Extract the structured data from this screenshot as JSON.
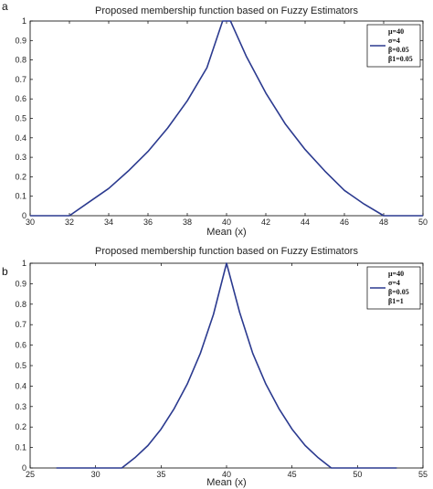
{
  "chart_data": [
    {
      "panel_label": "a",
      "type": "line",
      "title": "Proposed membership function based on Fuzzy Estimators",
      "xlabel": "Mean (x)",
      "ylabel": "",
      "xlim": [
        30,
        50
      ],
      "ylim": [
        0,
        1
      ],
      "x_ticks": [
        30,
        32,
        34,
        36,
        38,
        40,
        42,
        44,
        46,
        48,
        50
      ],
      "y_ticks": [
        0,
        0.1,
        0.2,
        0.3,
        0.4,
        0.5,
        0.6,
        0.7,
        0.8,
        0.9,
        1
      ],
      "grid": false,
      "legend_position": "top-right",
      "legend_lines": [
        "μ=40",
        "σ=4",
        "β=0.05",
        "β1=0.05"
      ],
      "series": [
        {
          "color": "#2b3a8f",
          "x": [
            30,
            32,
            33,
            34,
            35,
            36,
            37,
            38,
            39,
            39.8,
            40.2,
            41,
            42,
            43,
            44,
            45,
            46,
            47,
            48,
            50
          ],
          "y": [
            0,
            0,
            0.07,
            0.14,
            0.23,
            0.33,
            0.45,
            0.59,
            0.76,
            1.0,
            1.0,
            0.82,
            0.63,
            0.47,
            0.34,
            0.23,
            0.13,
            0.06,
            0,
            0
          ]
        }
      ]
    },
    {
      "panel_label": "b",
      "type": "line",
      "title": "Proposed membership function based on Fuzzy Estimators",
      "xlabel": "Mean (x)",
      "ylabel": "",
      "xlim": [
        25,
        55
      ],
      "ylim": [
        0,
        1
      ],
      "x_ticks": [
        25,
        30,
        35,
        40,
        45,
        50,
        55
      ],
      "y_ticks": [
        0,
        0.1,
        0.2,
        0.3,
        0.4,
        0.5,
        0.6,
        0.7,
        0.8,
        0.9,
        1
      ],
      "grid": false,
      "legend_position": "top-right",
      "legend_lines": [
        "μ=40",
        "σ=4",
        "β=0.05",
        "β1=1"
      ],
      "series": [
        {
          "color": "#2b3a8f",
          "x": [
            27,
            32,
            33,
            34,
            35,
            36,
            37,
            38,
            39,
            40,
            41,
            42,
            43,
            44,
            45,
            46,
            47,
            48,
            53
          ],
          "y": [
            0,
            0,
            0.05,
            0.11,
            0.19,
            0.29,
            0.41,
            0.56,
            0.75,
            1.0,
            0.76,
            0.56,
            0.41,
            0.29,
            0.19,
            0.11,
            0.05,
            0,
            0
          ]
        }
      ]
    }
  ]
}
